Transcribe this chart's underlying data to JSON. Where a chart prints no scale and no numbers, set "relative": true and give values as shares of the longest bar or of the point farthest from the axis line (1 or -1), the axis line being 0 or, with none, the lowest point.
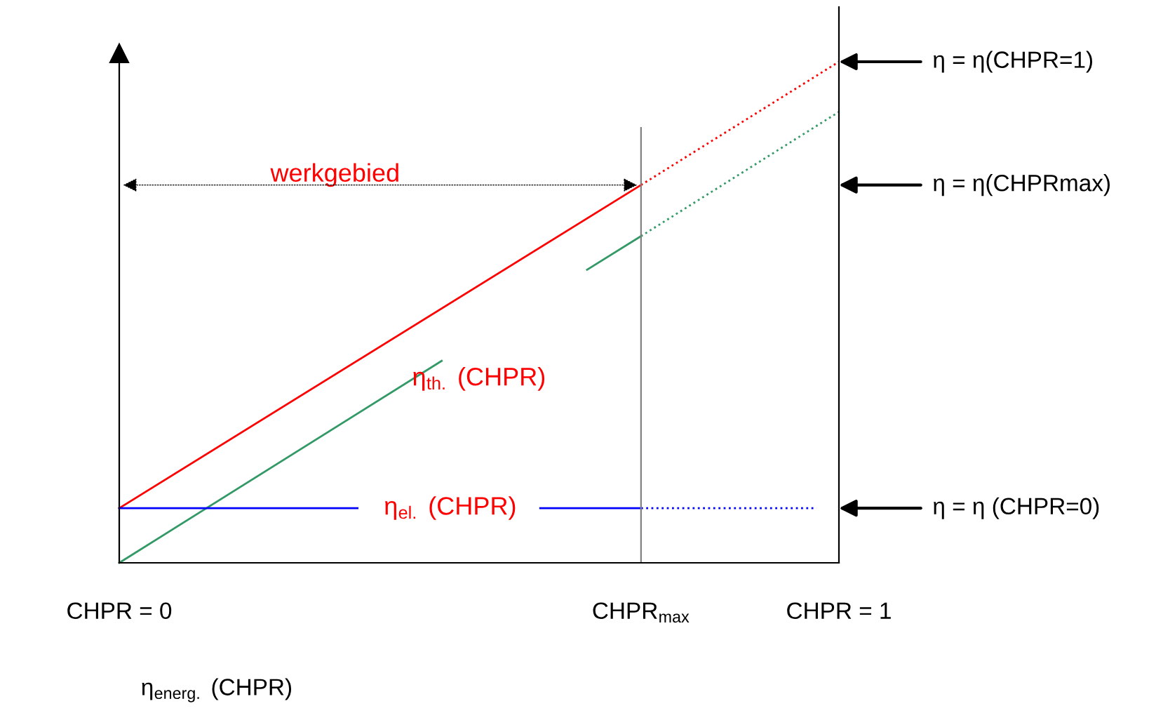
{
  "chart_data": {
    "type": "line",
    "relative": true,
    "xlabel": "η$_{energ.}$ (CHPR)",
    "xlim": [
      0,
      1
    ],
    "xticks": [
      {
        "value": 0,
        "label": "CHPR = 0"
      },
      {
        "value": 0.725,
        "label": "CHPR$_{max}$"
      },
      {
        "value": 1,
        "label": "CHPR = 1"
      }
    ],
    "grid": false,
    "legend": false,
    "marker": "none",
    "series": [
      {
        "color": "#ff0000",
        "x": [
          0,
          0.725
        ],
        "values": [
          0.109,
          0.754
        ],
        "line_style": "solid"
      },
      {
        "color": "#ff0000",
        "x": [
          0.725,
          1
        ],
        "values": [
          0.754,
          1
        ],
        "line_style": "dotted"
      },
      {
        "color": "#339966",
        "x": [
          0,
          0.448,
          0.5,
          0.65,
          0.725
        ],
        "values": [
          0,
          0.403,
          null,
          0.585,
          0.652
        ],
        "line_style": "solid"
      },
      {
        "color": "#339966",
        "x": [
          0.725,
          1
        ],
        "values": [
          0.652,
          0.9
        ],
        "line_style": "dotted"
      },
      {
        "color": "#0000ff",
        "x": [
          0,
          0.331,
          0.45,
          0.585,
          0.725
        ],
        "values": [
          0.109,
          0.109,
          null,
          0.109,
          0.109
        ],
        "line_style": "solid"
      },
      {
        "color": "#0000ff",
        "x": [
          0.725,
          0.969
        ],
        "values": [
          0.109,
          0.109
        ],
        "line_style": "dotted"
      }
    ],
    "ref_lines": [
      {
        "axis": "x",
        "value": 0.725,
        "color": "#808080",
        "line_style": "solid"
      }
    ],
    "annotations": [
      "werkgebied",
      "η$_{th.}$ (CHPR)",
      "η$_{el.}$ (CHPR)",
      "η = η(CHPR=1)",
      "η = η(CHPRmax)",
      "η = η (CHPR=0)"
    ]
  }
}
